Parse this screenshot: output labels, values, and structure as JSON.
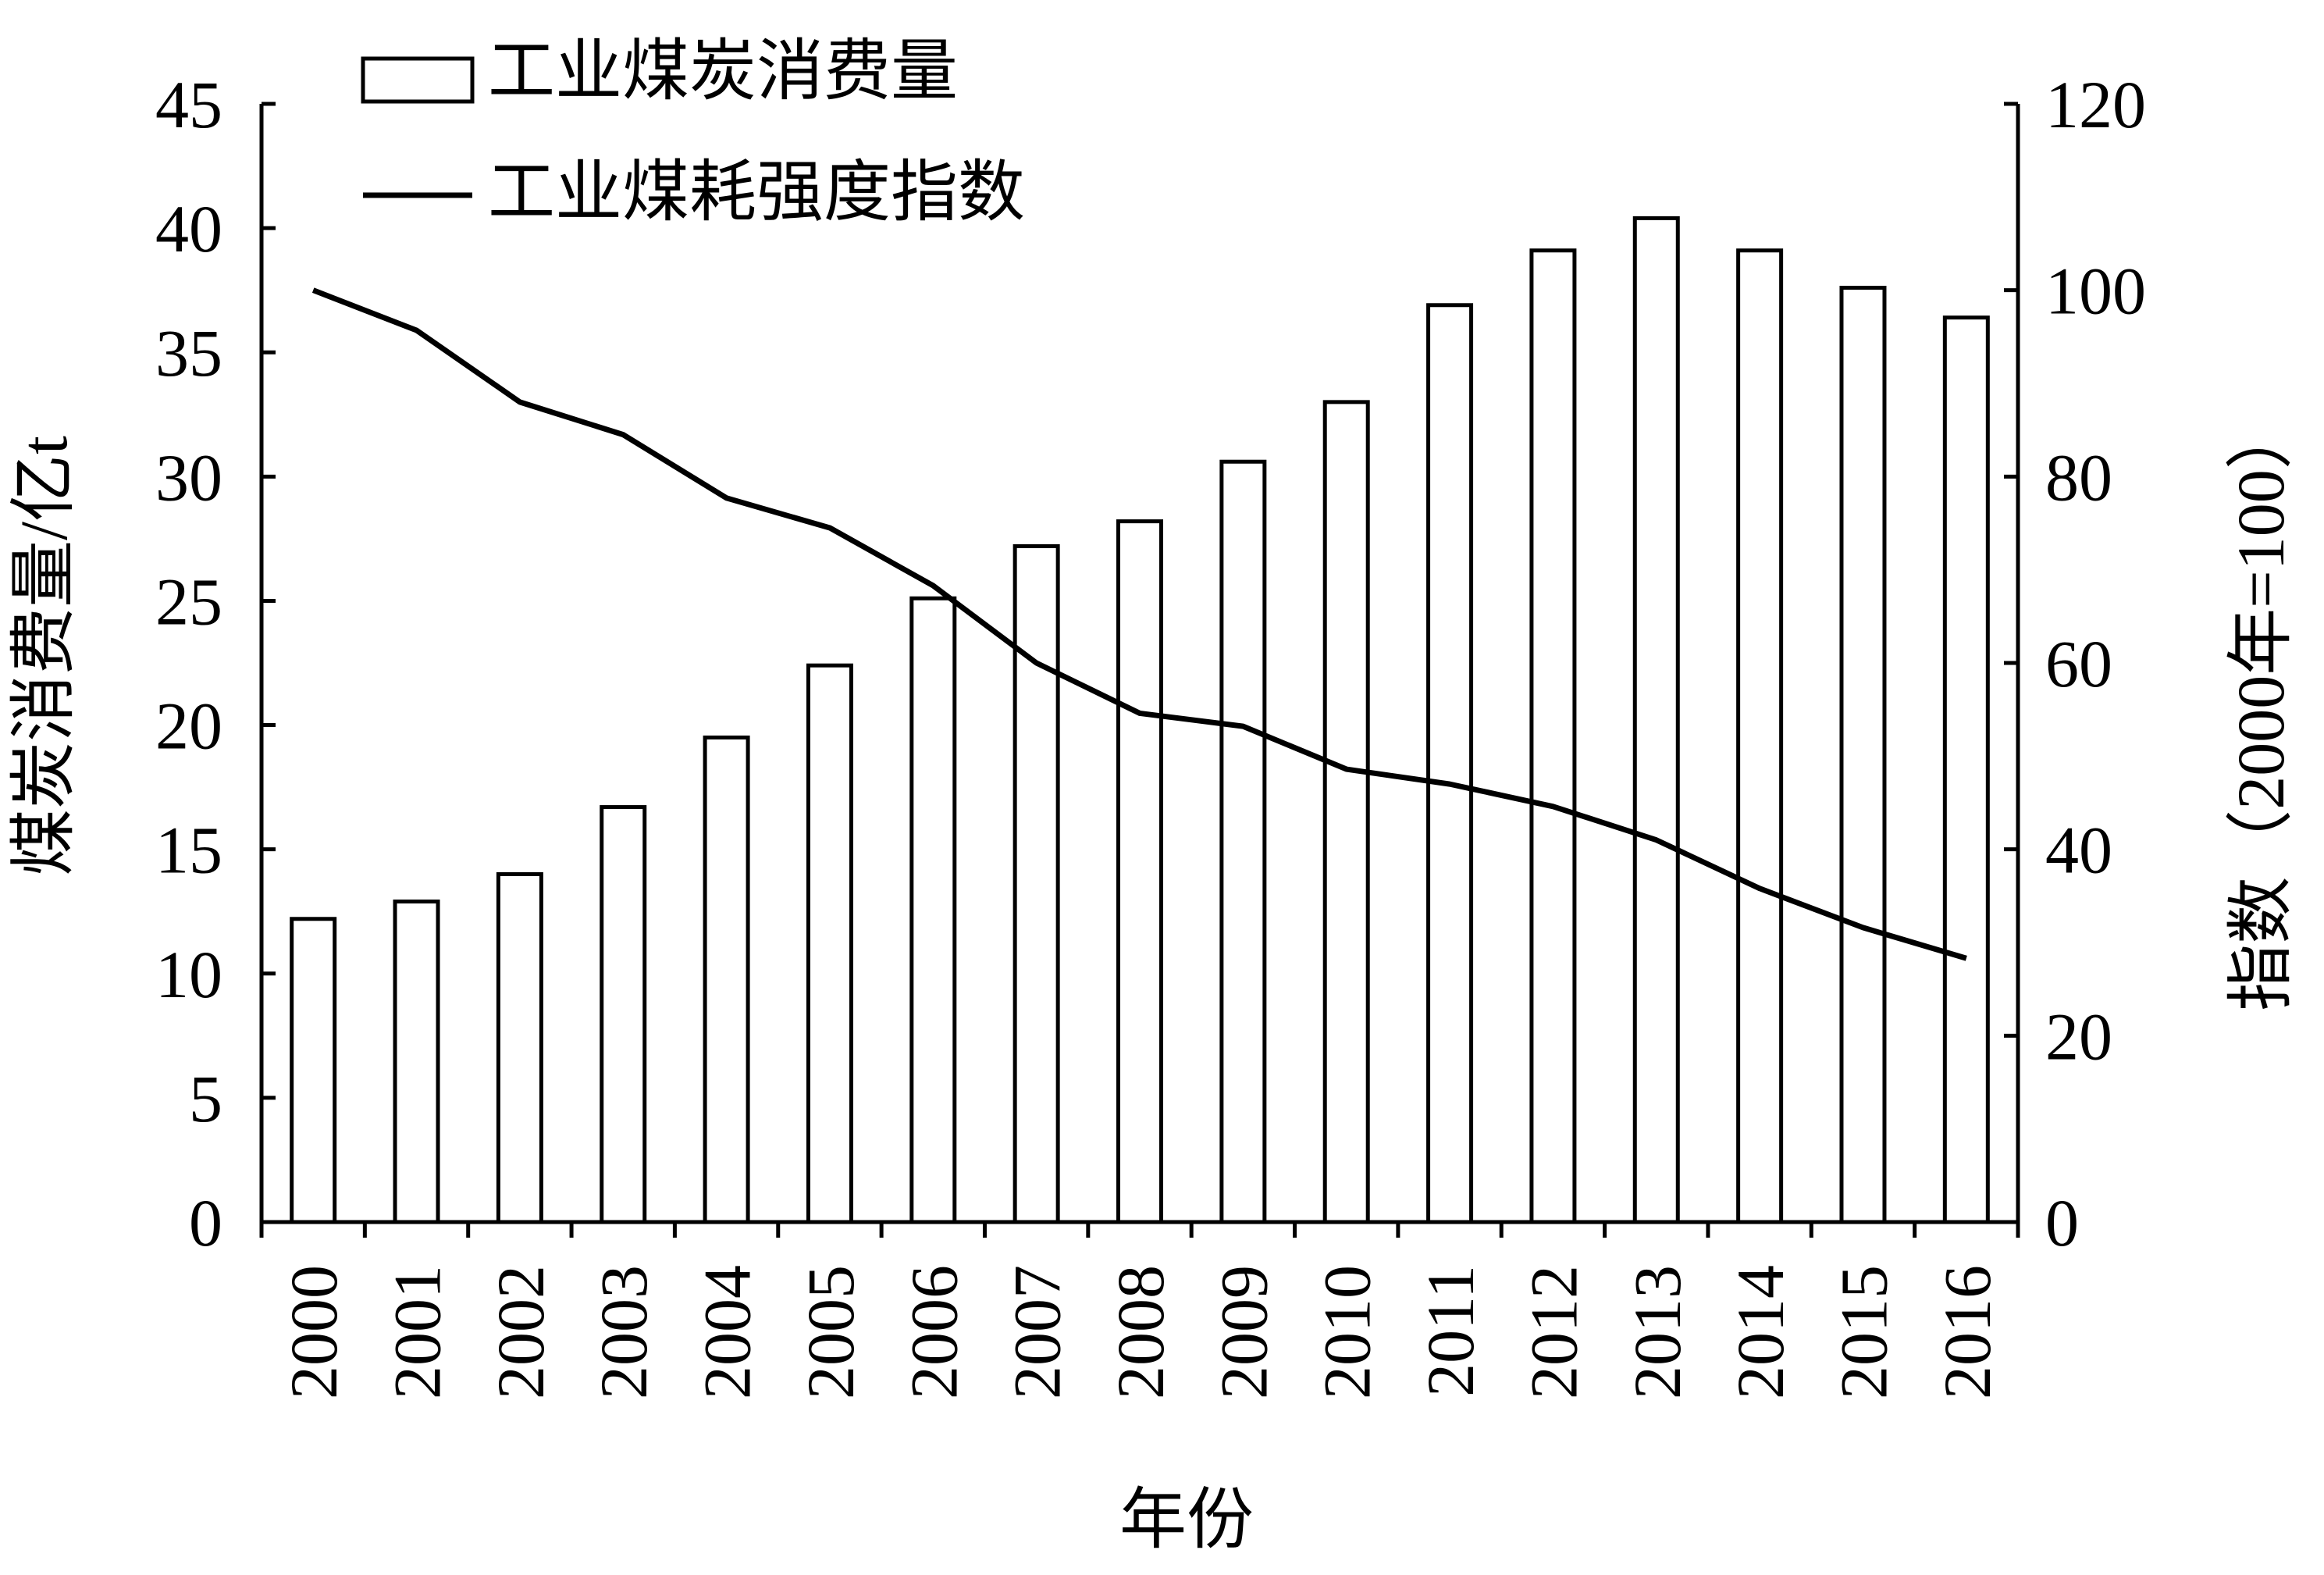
{
  "chart_data": {
    "type": "bar",
    "title": "",
    "categories": [
      "2000",
      "2001",
      "2002",
      "2003",
      "2004",
      "2005",
      "2006",
      "2007",
      "2008",
      "2009",
      "2010",
      "2011",
      "2012",
      "2013",
      "2014",
      "2015",
      "2016"
    ],
    "series": [
      {
        "name": "工业煤炭消费量",
        "type": "bar",
        "axis": "left",
        "values": [
          12.2,
          12.9,
          14.0,
          16.7,
          19.5,
          22.4,
          25.1,
          27.2,
          28.2,
          30.6,
          33.0,
          36.9,
          39.1,
          40.4,
          39.1,
          37.6,
          36.4
        ]
      },
      {
        "name": "工业煤耗强度指数",
        "type": "line",
        "axis": "right",
        "values": [
          100,
          95.7,
          88,
          84.5,
          77.7,
          74.5,
          68.3,
          60,
          54.6,
          53.2,
          48.6,
          47,
          44.6,
          41,
          35.8,
          31.6,
          28.3
        ]
      }
    ],
    "xlabel": "年份",
    "ylabel": "煤炭消费量/亿t",
    "y2label": "指数（2000年=100）",
    "ylim": [
      0,
      45
    ],
    "y2lim": [
      0,
      120
    ],
    "yticks": [
      "0",
      "5",
      "10",
      "15",
      "20",
      "25",
      "30",
      "35",
      "40",
      "45"
    ],
    "y2ticks": [
      "0",
      "20",
      "40",
      "60",
      "80",
      "100",
      "120"
    ],
    "grid": false,
    "legend_position": "top-left",
    "colors": {
      "bar_fill": "#ffffff",
      "stroke": "#000000",
      "line": "#000000"
    }
  }
}
